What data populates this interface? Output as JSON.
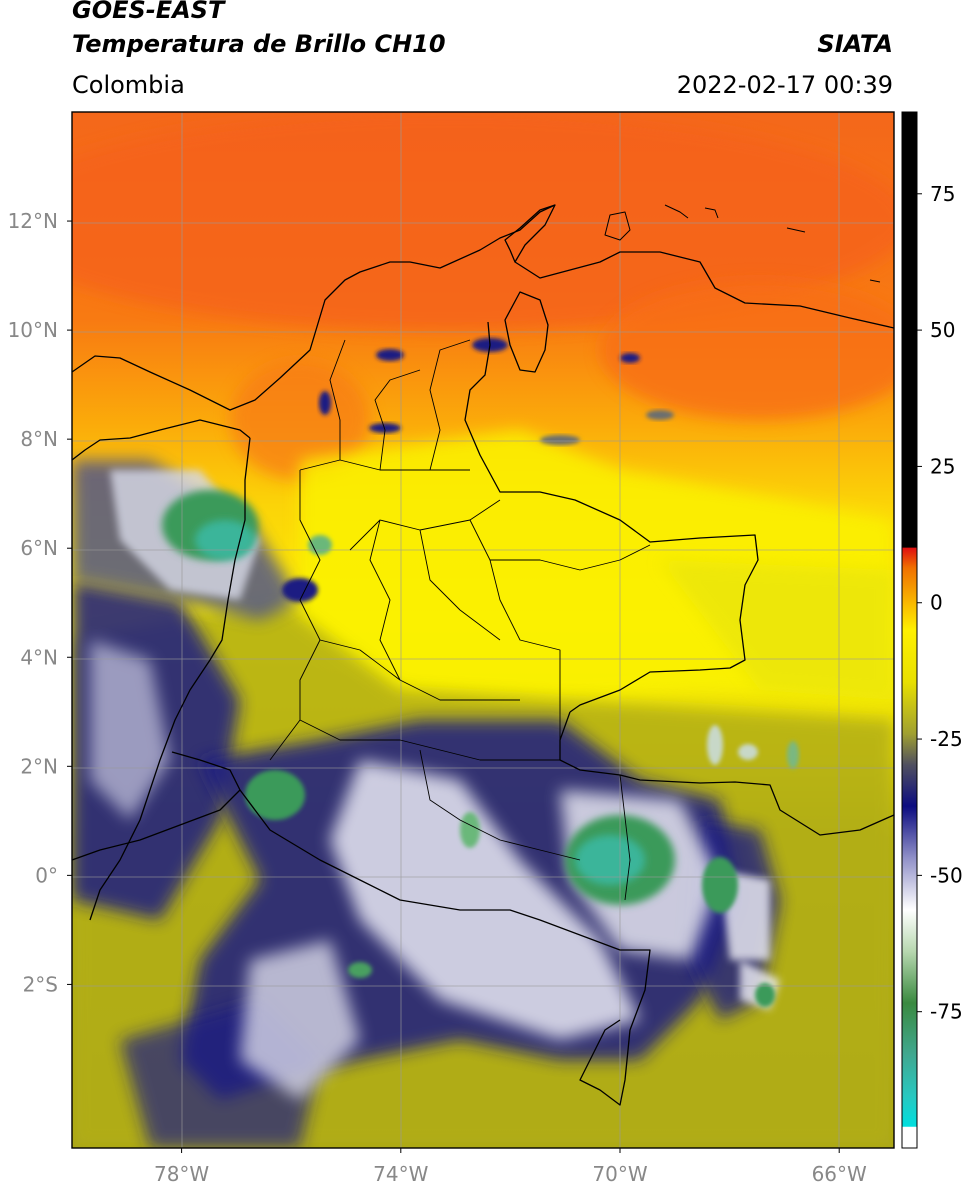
{
  "header": {
    "satellite": "GOES-EAST",
    "product": "Temperatura de Brillo CH10",
    "region": "Colombia",
    "brand": "SIATA",
    "datetime": "2022-02-17 00:39"
  },
  "map": {
    "lon_range": [
      -80,
      -65
    ],
    "lat_range": [
      -5,
      14
    ],
    "lon_ticks": [
      {
        "value": -78,
        "label": "78°W"
      },
      {
        "value": -74,
        "label": "74°W"
      },
      {
        "value": -70,
        "label": "70°W"
      },
      {
        "value": -66,
        "label": "66°W"
      }
    ],
    "lat_ticks": [
      {
        "value": 12,
        "label": "12°N"
      },
      {
        "value": 10,
        "label": "10°N"
      },
      {
        "value": 8,
        "label": "8°N"
      },
      {
        "value": 6,
        "label": "6°N"
      },
      {
        "value": 4,
        "label": "4°N"
      },
      {
        "value": 2,
        "label": "2°N"
      },
      {
        "value": 0,
        "label": "0°"
      },
      {
        "value": -2,
        "label": "2°S"
      }
    ],
    "gridlines": true
  },
  "colorbar": {
    "range": [
      -100,
      90
    ],
    "ticks": [
      {
        "value": 75,
        "label": "75"
      },
      {
        "value": 50,
        "label": "50"
      },
      {
        "value": 25,
        "label": "25"
      },
      {
        "value": 0,
        "label": "0"
      },
      {
        "value": -25,
        "label": "-25"
      },
      {
        "value": -50,
        "label": "-50"
      },
      {
        "value": -75,
        "label": "-75"
      }
    ]
  },
  "colors": {
    "warm_sea": "#f76a10",
    "warm": "#fb9a0a",
    "mid": "#f8d80a",
    "land": "#fbf205",
    "olive": "#b4b012",
    "navy": "#1c1f82",
    "white_cloud": "#f0f0f8",
    "green_core": "#3a9a5a",
    "teal_core": "#3bb59a"
  }
}
